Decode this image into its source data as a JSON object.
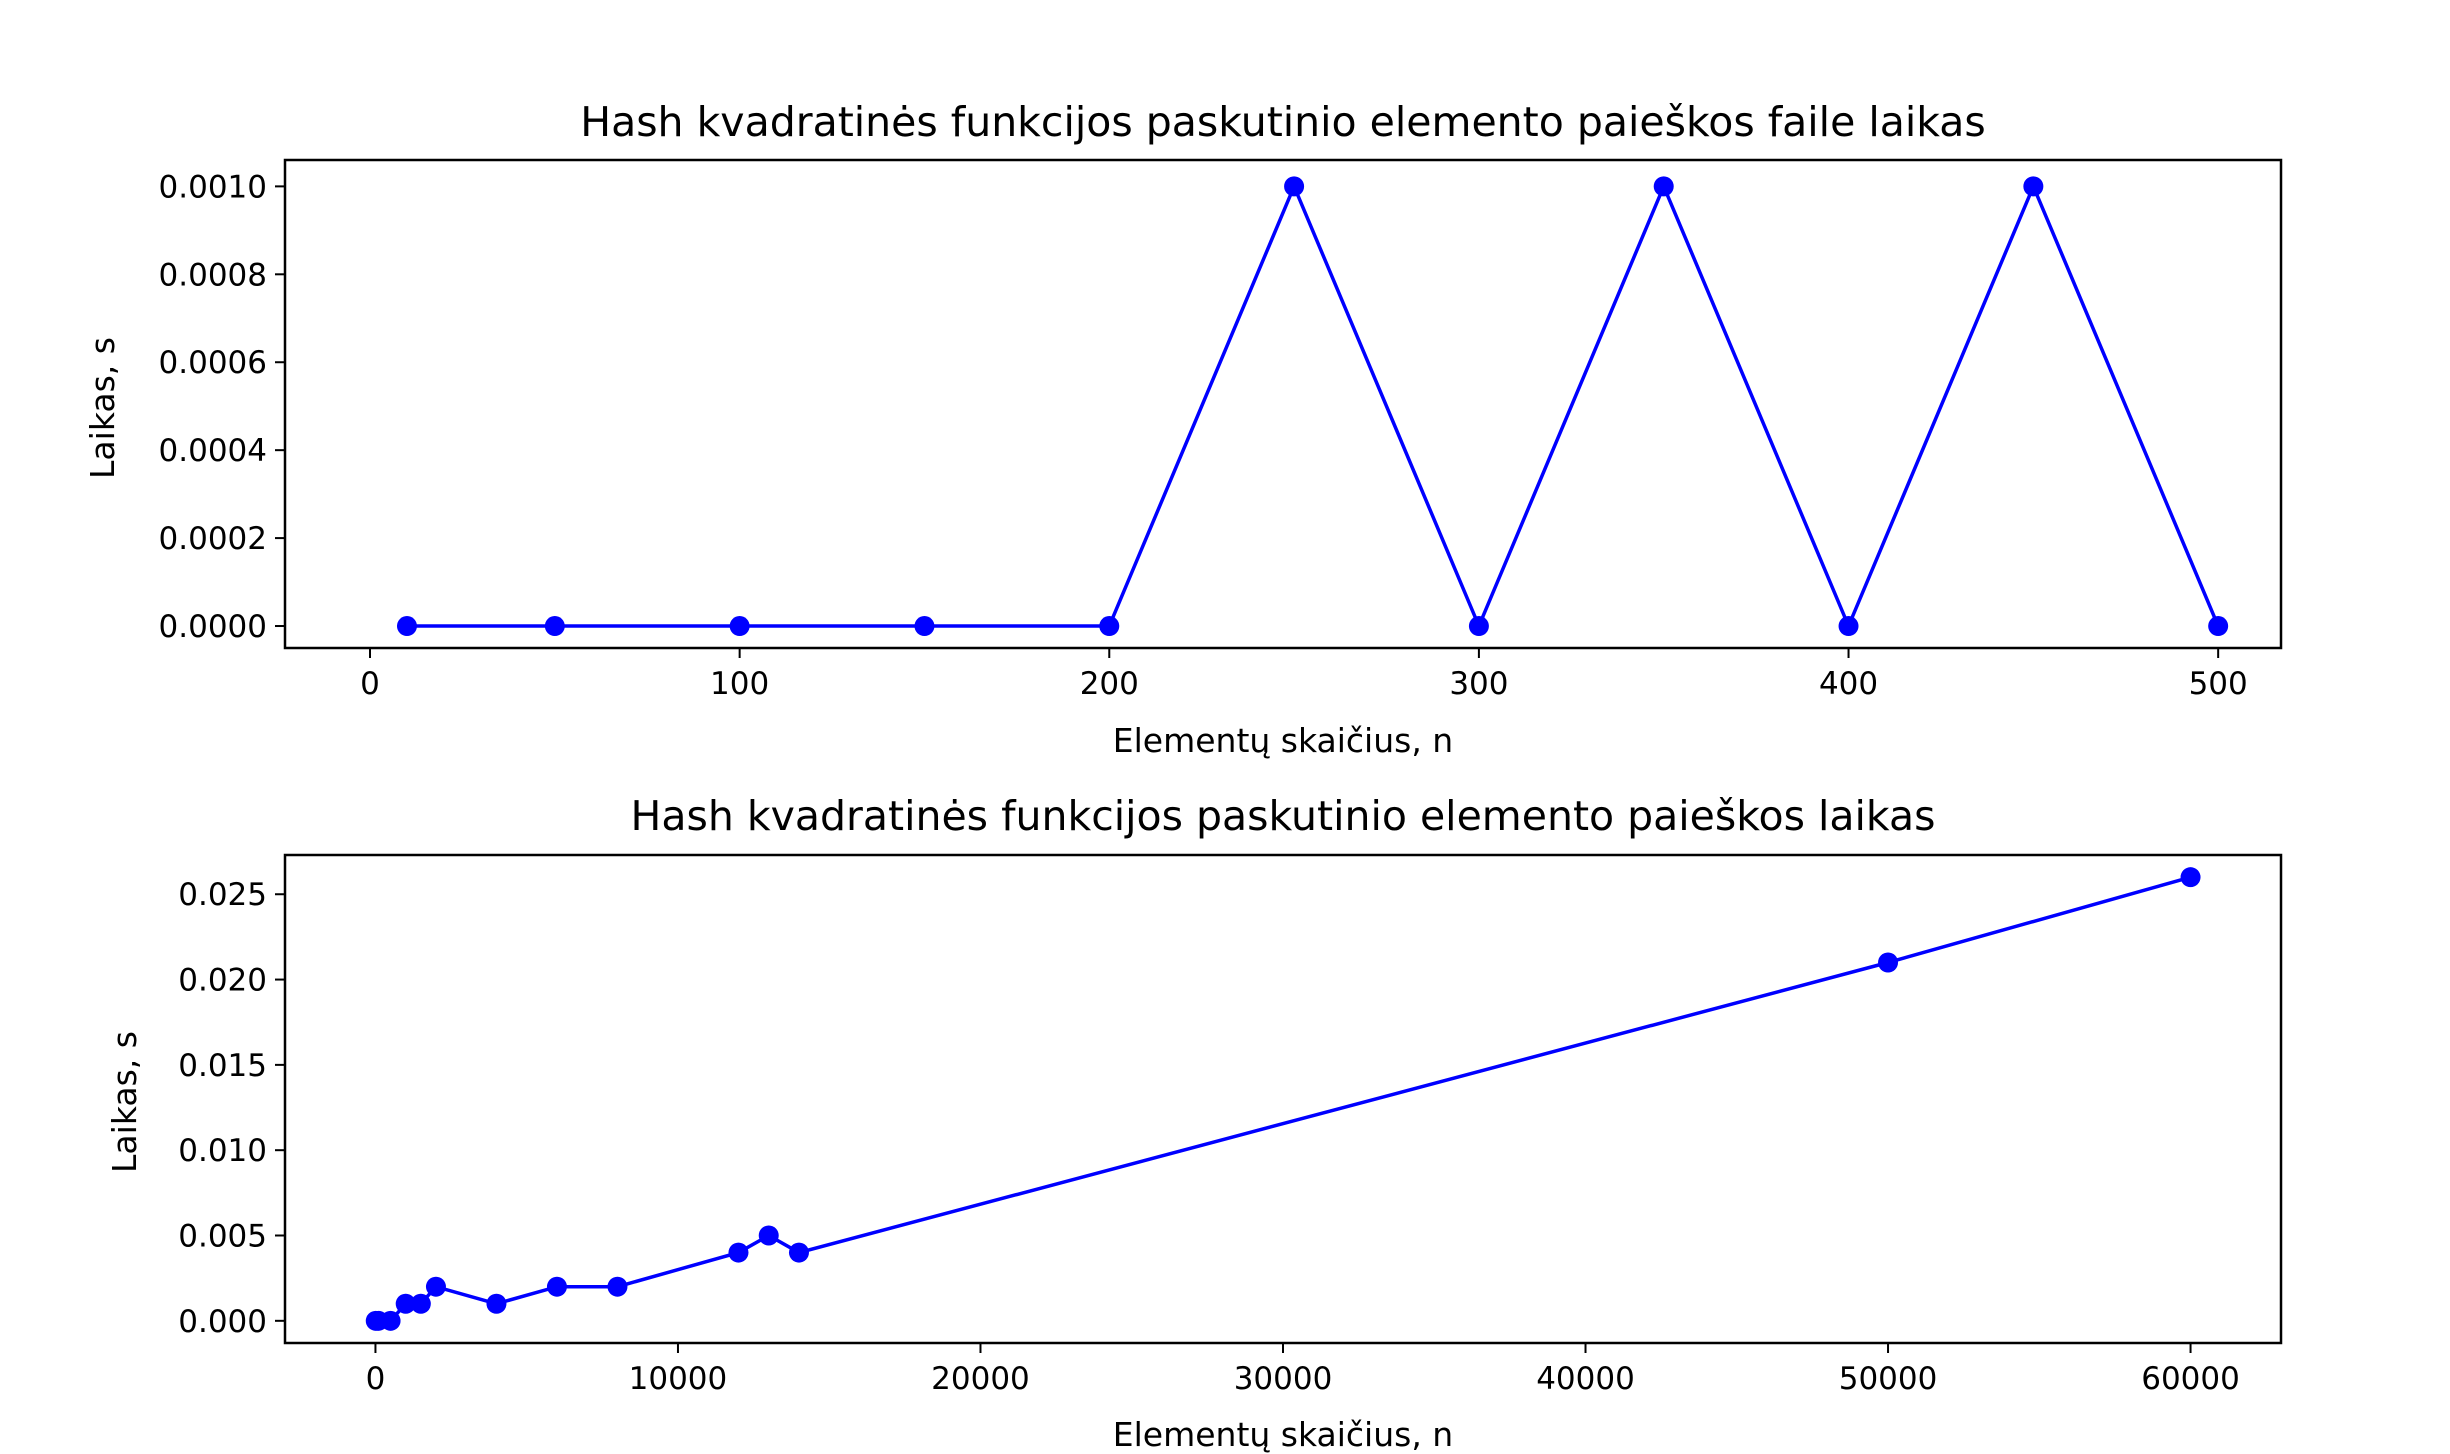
{
  "chart_data": [
    {
      "type": "line",
      "title": "Hash kvadratinės funkcijos paskutinio elemento paieškos faile laikas",
      "xlabel": "Elementų skaičius, n",
      "ylabel": "Laikas, s",
      "xlim": [
        -23,
        517
      ],
      "ylim": [
        -5e-05,
        0.00106
      ],
      "grid": false,
      "color": "#0000ff",
      "x_ticks": [
        0,
        100,
        200,
        300,
        400,
        500
      ],
      "x_tick_labels": [
        "0",
        "100",
        "200",
        "300",
        "400",
        "500"
      ],
      "y_ticks": [
        0,
        0.0002,
        0.0004,
        0.0006,
        0.0008,
        0.001
      ],
      "y_tick_labels": [
        "0.0000",
        "0.0002",
        "0.0004",
        "0.0006",
        "0.0008",
        "0.0010"
      ],
      "series": [
        {
          "x": [
            10,
            50,
            100,
            150,
            200,
            250,
            300,
            350,
            400,
            450,
            500
          ],
          "values": [
            0,
            0,
            0,
            0,
            0,
            0.001,
            0,
            0.001,
            0,
            0.001,
            0
          ]
        }
      ]
    },
    {
      "type": "line",
      "title": "Hash kvadratinės funkcijos paskutinio elemento paieškos laikas",
      "xlabel": "Elementų skaičius, n",
      "ylabel": "Laikas, s",
      "xlim": [
        -2990,
        62990
      ],
      "ylim": [
        -0.0013,
        0.0273
      ],
      "grid": false,
      "color": "#0000ff",
      "x_ticks": [
        0,
        10000,
        20000,
        30000,
        40000,
        50000,
        60000
      ],
      "x_tick_labels": [
        "0",
        "10000",
        "20000",
        "30000",
        "40000",
        "50000",
        "60000"
      ],
      "y_ticks": [
        0,
        0.005,
        0.01,
        0.015,
        0.02,
        0.025
      ],
      "y_tick_labels": [
        "0.000",
        "0.005",
        "0.010",
        "0.015",
        "0.020",
        "0.025"
      ],
      "series": [
        {
          "x": [
            10,
            100,
            500,
            1000,
            1500,
            2000,
            4000,
            6000,
            8000,
            12000,
            13000,
            14000,
            50000,
            60000
          ],
          "values": [
            0,
            0,
            0,
            0.001,
            0.001,
            0.002,
            0.001,
            0.002,
            0.002,
            0.004,
            0.005,
            0.004,
            0.021,
            0.026
          ]
        }
      ]
    }
  ]
}
